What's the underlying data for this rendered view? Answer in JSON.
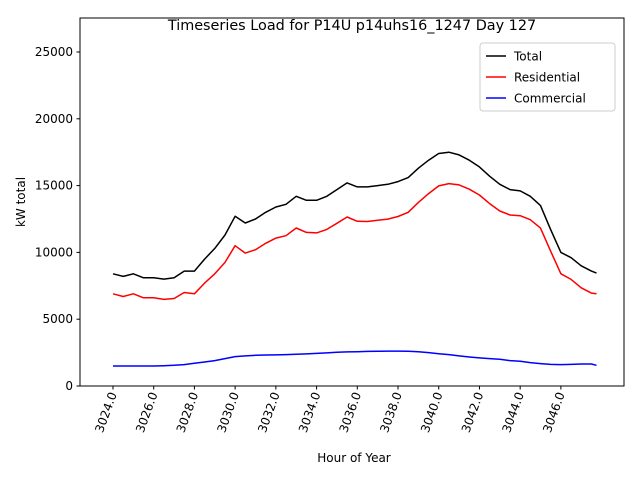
{
  "chart_data": {
    "type": "line",
    "title": "Timeseries Load for P14U p14uhs16_1247  Day 127",
    "xlabel": "Hour of Year",
    "ylabel": "kW total",
    "xlim": [
      3022.38,
      3049.1
    ],
    "ylim": [
      0,
      27545
    ],
    "xticks": [
      3024,
      3026,
      3028,
      3030,
      3032,
      3034,
      3036,
      3038,
      3040,
      3042,
      3044,
      3046
    ],
    "xtick_labels": [
      "3024.0",
      "3026.0",
      "3028.0",
      "3030.0",
      "3032.0",
      "3034.0",
      "3036.0",
      "3038.0",
      "3040.0",
      "3042.0",
      "3044.0",
      "3046.0"
    ],
    "yticks": [
      0,
      5000,
      10000,
      15000,
      20000,
      25000
    ],
    "ytick_labels": [
      "0",
      "5000",
      "10000",
      "15000",
      "20000",
      "25000"
    ],
    "grid": false,
    "legend_position": "top-right",
    "x": [
      3024,
      3024.5,
      3025,
      3025.5,
      3026,
      3026.5,
      3027,
      3027.5,
      3028,
      3028.5,
      3029,
      3029.5,
      3030,
      3030.5,
      3031,
      3031.5,
      3032,
      3032.5,
      3033,
      3033.5,
      3034,
      3034.5,
      3035,
      3035.5,
      3036,
      3036.5,
      3037,
      3037.5,
      3038,
      3038.5,
      3039,
      3039.5,
      3040,
      3040.5,
      3041,
      3041.5,
      3042,
      3042.5,
      3043,
      3043.5,
      3044,
      3044.5,
      3045,
      3045.5,
      3046,
      3046.5,
      3047,
      3047.5,
      3047.75
    ],
    "series": [
      {
        "name": "Total",
        "color": "#000000",
        "values": [
          8400,
          8200,
          8400,
          8100,
          8100,
          8000,
          8100,
          8600,
          8600,
          9500,
          10300,
          11300,
          12700,
          12200,
          12500,
          13000,
          13400,
          13600,
          14200,
          13900,
          13900,
          14200,
          14700,
          15200,
          14900,
          14900,
          15000,
          15100,
          15300,
          15600,
          16300,
          16900,
          17400,
          17500,
          17300,
          16900,
          16400,
          15700,
          15100,
          14700,
          14600,
          14200,
          13500,
          11700,
          10000,
          9600,
          9000,
          8600,
          8450
        ]
      },
      {
        "name": "Residential",
        "color": "#ff0000",
        "values": [
          6900,
          6700,
          6900,
          6600,
          6600,
          6480,
          6550,
          7000,
          6900,
          7700,
          8400,
          9250,
          10500,
          9950,
          10200,
          10680,
          11070,
          11250,
          11830,
          11500,
          11460,
          11720,
          12180,
          12650,
          12330,
          12310,
          12400,
          12490,
          12690,
          13000,
          13740,
          14400,
          14980,
          15150,
          15050,
          14730,
          14300,
          13650,
          13100,
          12800,
          12750,
          12450,
          11820,
          10080,
          8400,
          7980,
          7350,
          6950,
          6900
        ]
      },
      {
        "name": "Commercial",
        "color": "#0000ff",
        "values": [
          1500,
          1500,
          1500,
          1500,
          1500,
          1520,
          1550,
          1600,
          1700,
          1800,
          1900,
          2050,
          2200,
          2250,
          2300,
          2320,
          2330,
          2350,
          2370,
          2400,
          2440,
          2480,
          2520,
          2550,
          2570,
          2590,
          2600,
          2610,
          2610,
          2600,
          2560,
          2500,
          2420,
          2350,
          2250,
          2170,
          2100,
          2050,
          2000,
          1900,
          1850,
          1750,
          1680,
          1620,
          1600,
          1620,
          1650,
          1650,
          1550
        ]
      }
    ]
  }
}
